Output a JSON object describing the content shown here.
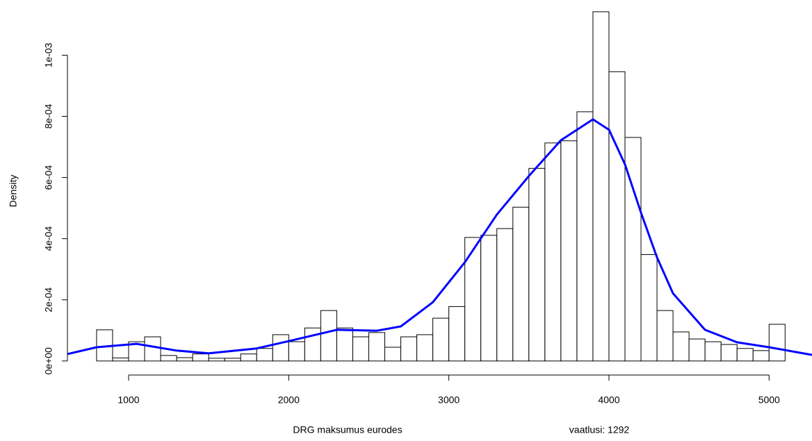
{
  "chart_data": {
    "type": "histogram",
    "xlabel": "DRG maksumus eurodes",
    "ylabel": "Density",
    "annotation": "vaatlusi: 1292",
    "bins": [
      800,
      900,
      1000,
      1100,
      1200,
      1300,
      1400,
      1500,
      1600,
      1700,
      1800,
      1900,
      2000,
      2100,
      2200,
      2300,
      2400,
      2500,
      2600,
      2700,
      2800,
      2900,
      3000,
      3100,
      3200,
      3300,
      3400,
      3500,
      3600,
      3700,
      3800,
      3900,
      4000,
      4100,
      4200,
      4300,
      4400,
      4500,
      4600,
      4700,
      4800,
      4900,
      5000,
      5100
    ],
    "values": [
      0.000102,
      1e-05,
      6.3e-05,
      7.9e-05,
      1.8e-05,
      1.1e-05,
      2.3e-05,
      9e-06,
      9e-06,
      2.3e-05,
      4.1e-05,
      8.6e-05,
      6.3e-05,
      0.000108,
      0.000165,
      0.000108,
      7.9e-05,
      9.3e-05,
      4.5e-05,
      7.9e-05,
      8.6e-05,
      0.00014,
      0.000178,
      0.000404,
      0.000411,
      0.000433,
      0.000503,
      0.00063,
      0.000713,
      0.00072,
      0.000815,
      0.001142,
      0.000946,
      0.000731,
      0.000348,
      0.000165,
      9.5e-05,
      7.2e-05,
      6.3e-05,
      5.4e-05,
      4.1e-05,
      3.4e-05,
      0.00012
    ],
    "color": "#ffffff",
    "edgecolor": "#000000",
    "density": {
      "color": "#0000ff",
      "x": [
        620,
        800,
        1050,
        1300,
        1500,
        1800,
        2000,
        2300,
        2550,
        2700,
        2900,
        3100,
        3300,
        3500,
        3700,
        3900,
        4000,
        4100,
        4200,
        4300,
        4400,
        4600,
        4800,
        5000,
        5268
      ],
      "values": [
        2.3e-05,
        4.5e-05,
        5.6e-05,
        3.4e-05,
        2.5e-05,
        4.1e-05,
        6.5e-05,
        0.000102,
        9.9e-05,
        0.000113,
        0.000192,
        0.000323,
        0.000479,
        0.000605,
        0.000722,
        0.00079,
        0.000756,
        0.000643,
        0.000485,
        0.000339,
        0.000221,
        0.000102,
        6.1e-05,
        4.5e-05,
        2e-05
      ]
    },
    "xlim": [
      618,
      5268
    ],
    "ylim": [
      -3e-05,
      0.00116
    ],
    "xticks": [
      1000,
      2000,
      3000,
      4000,
      5000
    ],
    "yticks": [
      {
        "value": 0,
        "label": "0e+00"
      },
      {
        "value": 0.0002,
        "label": "2e-04"
      },
      {
        "value": 0.0004,
        "label": "4e-04"
      },
      {
        "value": 0.0006,
        "label": "6e-04"
      },
      {
        "value": 0.0008,
        "label": "8e-04"
      },
      {
        "value": 0.001,
        "label": "1e-03"
      }
    ]
  }
}
